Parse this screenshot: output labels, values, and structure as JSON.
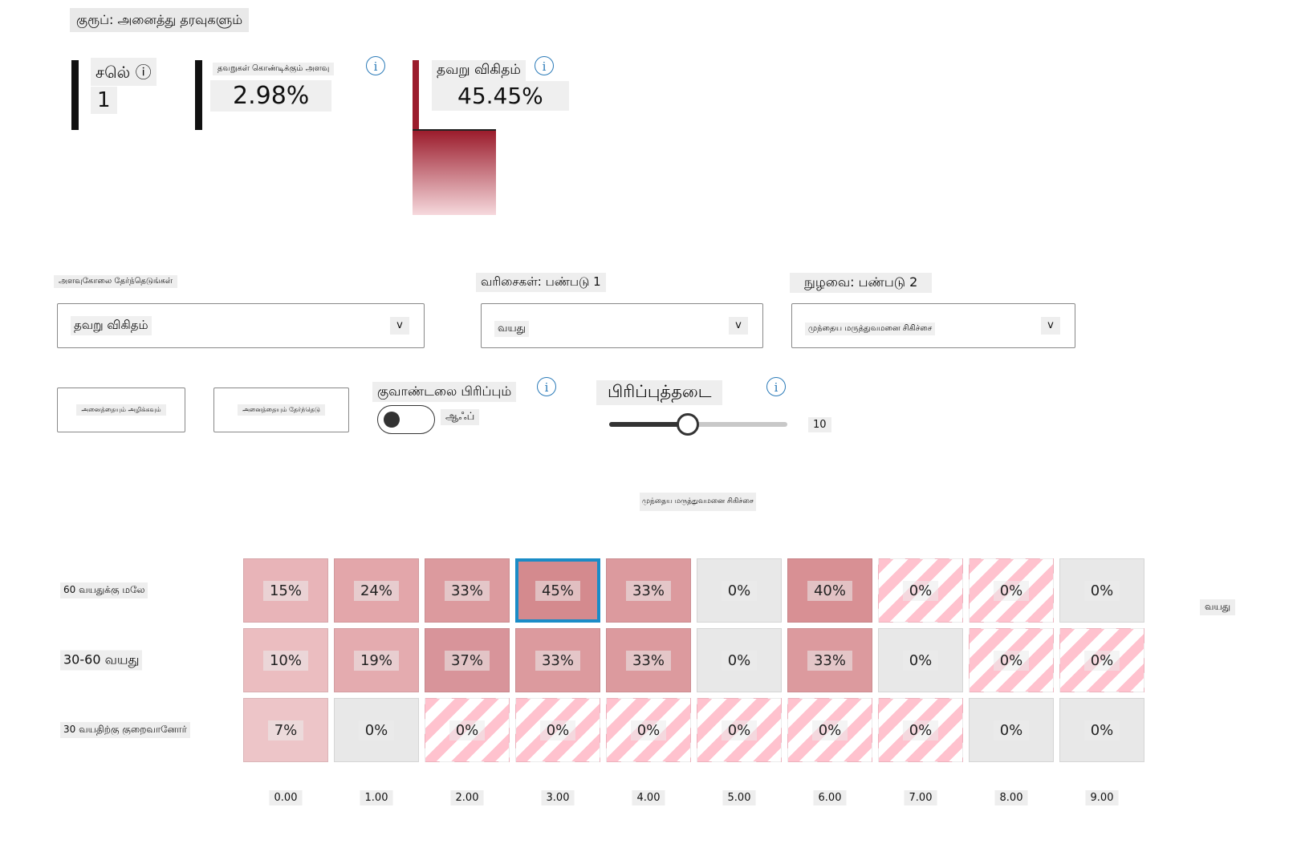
{
  "cohort_label": "குரூப்: அனைத்து தரவுகளும்",
  "metrics": {
    "cells": {
      "label": "சலெ் ⓘ",
      "value": "1"
    },
    "error_coverage": {
      "label": "தவறுகள் கொண்டிக்கும் அளவு",
      "value": "2.98%"
    },
    "error_rate": {
      "label": "தவறு விகிதம்",
      "value": "45.45%",
      "fill_fraction": 0.45
    }
  },
  "controls": {
    "metric_select_label": "அளவுகோலை தேர்ந்தெடுங்கள்",
    "metric_select_value": "தவறு விகிதம்",
    "rows_label": "வரிசைகள்: பண்படு 1",
    "rows_value": "வயது",
    "cols_label": "நுழவை: பண்படு 2",
    "cols_value": "முந்தைய மருத்துவமனை சிகிச்சை",
    "chevron": "v",
    "btn_clear": "அனைத்தையும் அழிக்கவும்",
    "btn_select": "அனைத்தையும் தேர்ந்தெடு",
    "quantile_label": "குவாண்டலை பிரிப்பும்",
    "toggle_state": "ஆஃப்",
    "toggle_on": false,
    "bins_label": "பிரிப்புத்தடை",
    "bins_value": "10",
    "bins_fraction": 0.44
  },
  "heatmap": {
    "column_title": "முந்தைய மருத்துவமனை சிகிச்சை",
    "row_axis_title": "வயது",
    "row_labels": [
      "60 வயதுக்கு மலே",
      "30-60 வயது",
      "30 வயதிற்கு குறைவானோர்"
    ],
    "x_labels": [
      "0.00",
      "1.00",
      "2.00",
      "3.00",
      "4.00",
      "5.00",
      "6.00",
      "7.00",
      "8.00",
      "9.00"
    ],
    "rows": [
      [
        {
          "v": "15%",
          "c": "#e8b4b8",
          "t": "solid"
        },
        {
          "v": "24%",
          "c": "#e3a6aa",
          "t": "solid"
        },
        {
          "v": "33%",
          "c": "#dc9a9e",
          "t": "solid"
        },
        {
          "v": "45%",
          "c": "#d48a8e",
          "t": "selected"
        },
        {
          "v": "33%",
          "c": "#dc9a9e",
          "t": "solid"
        },
        {
          "v": "0%",
          "c": "#e8e8e8",
          "t": "solid"
        },
        {
          "v": "40%",
          "c": "#d89094",
          "t": "solid"
        },
        {
          "v": "0%",
          "c": "",
          "t": "hatch"
        },
        {
          "v": "0%",
          "c": "",
          "t": "hatch"
        },
        {
          "v": "0%",
          "c": "#e8e8e8",
          "t": "solid"
        }
      ],
      [
        {
          "v": "10%",
          "c": "#ebbdc0",
          "t": "solid"
        },
        {
          "v": "19%",
          "c": "#e4abaf",
          "t": "solid"
        },
        {
          "v": "37%",
          "c": "#d8949a",
          "t": "solid"
        },
        {
          "v": "33%",
          "c": "#dc9a9e",
          "t": "solid"
        },
        {
          "v": "33%",
          "c": "#dc9a9e",
          "t": "solid"
        },
        {
          "v": "0%",
          "c": "#e8e8e8",
          "t": "solid"
        },
        {
          "v": "33%",
          "c": "#dc9a9e",
          "t": "solid"
        },
        {
          "v": "0%",
          "c": "#e8e8e8",
          "t": "solid"
        },
        {
          "v": "0%",
          "c": "",
          "t": "hatch"
        },
        {
          "v": "0%",
          "c": "",
          "t": "hatch"
        }
      ],
      [
        {
          "v": "7%",
          "c": "#edc5c8",
          "t": "solid"
        },
        {
          "v": "0%",
          "c": "#e8e8e8",
          "t": "solid"
        },
        {
          "v": "0%",
          "c": "",
          "t": "hatch"
        },
        {
          "v": "0%",
          "c": "",
          "t": "hatch"
        },
        {
          "v": "0%",
          "c": "",
          "t": "hatch"
        },
        {
          "v": "0%",
          "c": "",
          "t": "hatch"
        },
        {
          "v": "0%",
          "c": "",
          "t": "hatch"
        },
        {
          "v": "0%",
          "c": "",
          "t": "hatch"
        },
        {
          "v": "0%",
          "c": "#e8e8e8",
          "t": "solid"
        },
        {
          "v": "0%",
          "c": "#e8e8e8",
          "t": "solid"
        }
      ]
    ]
  },
  "colors": {
    "accent": "#1a8cc7",
    "error_bar_top": "#9b1c2c",
    "error_bar_bottom": "#f6d9dd",
    "hatch": "#ffc2ce"
  },
  "icons": {
    "info": "i"
  }
}
